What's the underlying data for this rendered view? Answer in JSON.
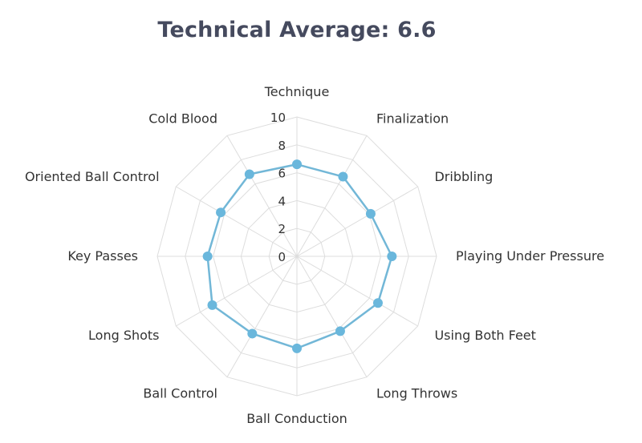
{
  "title": "Technical Average: 6.6",
  "chart_data": {
    "type": "radar",
    "title": "Technical Average: 6.6",
    "categories": [
      "Technique",
      "Finalization",
      "Dribbling",
      "Playing Under Pressure",
      "Using Both Feet",
      "Long Throws",
      "Ball Conduction",
      "Ball Control",
      "Long Shots",
      "Key Passes",
      "Oriented Ball Control",
      "Cold Blood"
    ],
    "values": [
      6.6,
      6.6,
      6.1,
      6.8,
      6.7,
      6.2,
      6.6,
      6.4,
      7.0,
      6.4,
      6.3,
      6.8
    ],
    "rlim": [
      0,
      10
    ],
    "ticks": [
      "0",
      "2",
      "4",
      "6",
      "8",
      "10"
    ],
    "grid": true,
    "colors": {
      "line": "#72b7d7",
      "marker": "#6ab7dc",
      "grid": "#dddddd",
      "text": "#333333",
      "title": "#454a5e"
    }
  }
}
